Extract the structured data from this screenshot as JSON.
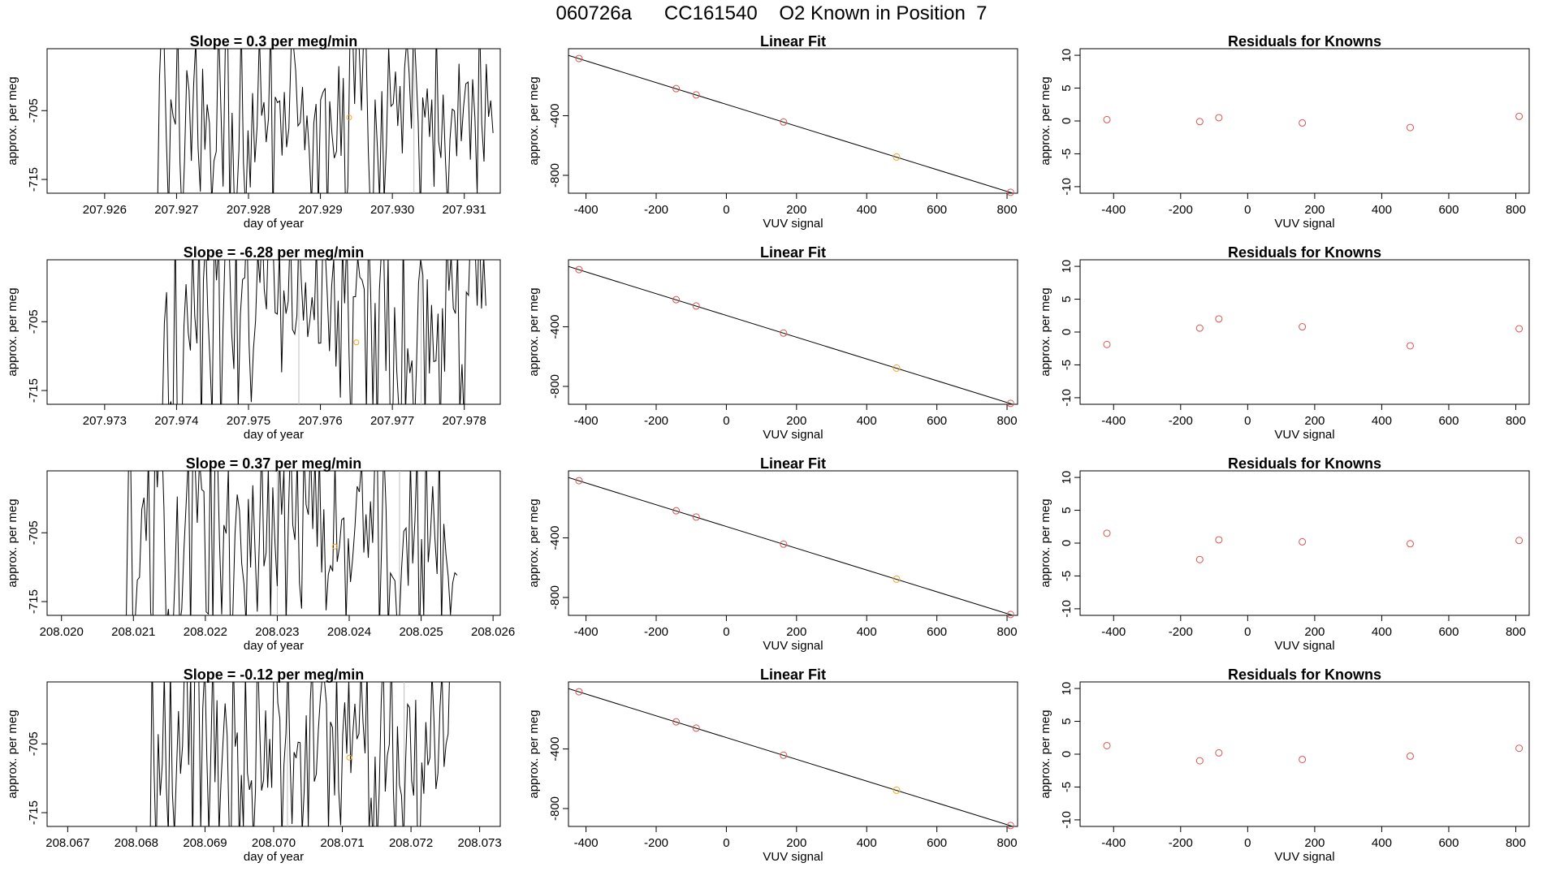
{
  "main_title": "060726a      CC161540    O2 Known in Position  7",
  "chart_data": [
    {
      "type": "line",
      "panel": "series",
      "row": 1,
      "title": "Slope =  0.3  per meg/min",
      "xlabel": "day of year",
      "ylabel": "approx. per meg",
      "xlim": [
        207.9252,
        207.9315
      ],
      "ylim": [
        -717,
        -696
      ],
      "xticks": [
        207.926,
        207.927,
        207.928,
        207.929,
        207.93,
        207.931
      ],
      "xtick_labels": [
        "207.926",
        "207.927",
        "207.928",
        "207.929",
        "207.930",
        "207.931"
      ],
      "yticks": [
        -705,
        -715
      ],
      "ytick_labels": [
        "-705",
        "-715"
      ],
      "vlines": [
        207.9303
      ],
      "highlight": {
        "x": 207.9294,
        "y": -706
      },
      "seed": 11,
      "x_start": 207.9267,
      "x_end": 207.9314
    },
    {
      "type": "scatter",
      "panel": "fit",
      "row": 1,
      "title": "Linear Fit",
      "xlabel": "VUV signal",
      "ylabel": "approx. per meg",
      "xlim": [
        -450,
        830
      ],
      "ylim": [
        -920,
        50
      ],
      "xticks": [
        -400,
        -200,
        0,
        200,
        400,
        600,
        800
      ],
      "yticks": [
        -400,
        -800
      ],
      "line": [
        [
          -450,
          5
        ],
        [
          830,
          -930
        ]
      ],
      "points": [
        {
          "x": -420,
          "y": -16,
          "c": "red"
        },
        {
          "x": -143,
          "y": -218,
          "c": "red"
        },
        {
          "x": -86,
          "y": -260,
          "c": "red"
        },
        {
          "x": 163,
          "y": -442,
          "c": "red"
        },
        {
          "x": 485,
          "y": -677,
          "c": "orange"
        },
        {
          "x": 810,
          "y": -914,
          "c": "red"
        }
      ]
    },
    {
      "type": "scatter",
      "panel": "resid",
      "row": 1,
      "title": "Residuals for Knowns",
      "xlabel": "VUV signal",
      "ylabel": "approx. per meg",
      "xlim": [
        -500,
        840
      ],
      "ylim": [
        -11,
        11
      ],
      "xticks": [
        -400,
        -200,
        0,
        200,
        400,
        600,
        800
      ],
      "yticks": [
        10,
        5,
        0,
        -5,
        -10
      ],
      "points": [
        {
          "x": -420,
          "y": 0.2
        },
        {
          "x": -143,
          "y": -0.1
        },
        {
          "x": -86,
          "y": 0.5
        },
        {
          "x": 163,
          "y": -0.3
        },
        {
          "x": 485,
          "y": -1.0
        },
        {
          "x": 810,
          "y": 0.7
        }
      ]
    },
    {
      "type": "line",
      "panel": "series",
      "row": 2,
      "title": "Slope =  -6.28  per meg/min",
      "xlabel": "day of year",
      "ylabel": "approx. per meg",
      "xlim": [
        207.9722,
        207.9785
      ],
      "ylim": [
        -717,
        -696
      ],
      "xticks": [
        207.973,
        207.974,
        207.975,
        207.976,
        207.977,
        207.978
      ],
      "xtick_labels": [
        "207.973",
        "207.974",
        "207.975",
        "207.976",
        "207.977",
        "207.978"
      ],
      "yticks": [
        -705,
        -715
      ],
      "ytick_labels": [
        "-705",
        "-715"
      ],
      "vlines": [
        207.9757,
        207.9774
      ],
      "highlight": {
        "x": 207.9765,
        "y": -708
      },
      "seed": 23,
      "x_start": 207.9738,
      "x_end": 207.9783
    },
    {
      "type": "scatter",
      "panel": "fit",
      "row": 2,
      "title": "Linear Fit",
      "xlabel": "VUV signal",
      "ylabel": "approx. per meg",
      "xlim": [
        -450,
        830
      ],
      "ylim": [
        -920,
        50
      ],
      "xticks": [
        -400,
        -200,
        0,
        200,
        400,
        600,
        800
      ],
      "yticks": [
        -400,
        -800
      ],
      "line": [
        [
          -450,
          5
        ],
        [
          830,
          -930
        ]
      ],
      "points": [
        {
          "x": -420,
          "y": -16,
          "c": "red"
        },
        {
          "x": -143,
          "y": -218,
          "c": "red"
        },
        {
          "x": -86,
          "y": -260,
          "c": "red"
        },
        {
          "x": 163,
          "y": -442,
          "c": "red"
        },
        {
          "x": 485,
          "y": -677,
          "c": "orange"
        },
        {
          "x": 810,
          "y": -914,
          "c": "red"
        }
      ]
    },
    {
      "type": "scatter",
      "panel": "resid",
      "row": 2,
      "title": "Residuals for Knowns",
      "xlabel": "VUV signal",
      "ylabel": "approx. per meg",
      "xlim": [
        -500,
        840
      ],
      "ylim": [
        -11,
        11
      ],
      "xticks": [
        -400,
        -200,
        0,
        200,
        400,
        600,
        800
      ],
      "yticks": [
        10,
        5,
        0,
        -5,
        -10
      ],
      "points": [
        {
          "x": -420,
          "y": -1.9
        },
        {
          "x": -143,
          "y": 0.6
        },
        {
          "x": -86,
          "y": 2.0
        },
        {
          "x": 163,
          "y": 0.8
        },
        {
          "x": 485,
          "y": -2.1
        },
        {
          "x": 810,
          "y": 0.5
        }
      ]
    },
    {
      "type": "line",
      "panel": "series",
      "row": 3,
      "title": "Slope =  0.37  per meg/min",
      "xlabel": "day of year",
      "ylabel": "approx. per meg",
      "xlim": [
        208.0198,
        208.0261
      ],
      "ylim": [
        -717,
        -696
      ],
      "xticks": [
        208.02,
        208.021,
        208.022,
        208.023,
        208.024,
        208.025,
        208.026
      ],
      "xtick_labels": [
        "208.020",
        "208.021",
        "208.022",
        "208.023",
        "208.024",
        "208.025",
        "208.026"
      ],
      "yticks": [
        -705,
        -715
      ],
      "ytick_labels": [
        "-705",
        "-715"
      ],
      "vlines": [
        208.023,
        208.0247
      ],
      "highlight": {
        "x": 208.0238,
        "y": -707
      },
      "seed": 37,
      "x_start": 208.0209,
      "x_end": 208.0255
    },
    {
      "type": "scatter",
      "panel": "fit",
      "row": 3,
      "title": "Linear Fit",
      "xlabel": "VUV signal",
      "ylabel": "approx. per meg",
      "xlim": [
        -450,
        830
      ],
      "ylim": [
        -920,
        50
      ],
      "xticks": [
        -400,
        -200,
        0,
        200,
        400,
        600,
        800
      ],
      "yticks": [
        -400,
        -800
      ],
      "line": [
        [
          -450,
          5
        ],
        [
          830,
          -930
        ]
      ],
      "points": [
        {
          "x": -420,
          "y": -16,
          "c": "red"
        },
        {
          "x": -143,
          "y": -218,
          "c": "red"
        },
        {
          "x": -86,
          "y": -260,
          "c": "red"
        },
        {
          "x": 163,
          "y": -442,
          "c": "red"
        },
        {
          "x": 485,
          "y": -677,
          "c": "orange"
        },
        {
          "x": 810,
          "y": -914,
          "c": "red"
        }
      ]
    },
    {
      "type": "scatter",
      "panel": "resid",
      "row": 3,
      "title": "Residuals for Knowns",
      "xlabel": "VUV signal",
      "ylabel": "approx. per meg",
      "xlim": [
        -500,
        840
      ],
      "ylim": [
        -11,
        11
      ],
      "xticks": [
        -400,
        -200,
        0,
        200,
        400,
        600,
        800
      ],
      "yticks": [
        10,
        5,
        0,
        -5,
        -10
      ],
      "points": [
        {
          "x": -420,
          "y": 1.5
        },
        {
          "x": -143,
          "y": -2.5
        },
        {
          "x": -86,
          "y": 0.5
        },
        {
          "x": 163,
          "y": 0.2
        },
        {
          "x": 485,
          "y": -0.1
        },
        {
          "x": 810,
          "y": 0.4
        }
      ]
    },
    {
      "type": "line",
      "panel": "series",
      "row": 4,
      "title": "Slope =  -0.12  per meg/min",
      "xlabel": "day of year",
      "ylabel": "approx. per meg",
      "xlim": [
        208.0667,
        208.0733
      ],
      "ylim": [
        -717,
        -696
      ],
      "xticks": [
        208.067,
        208.068,
        208.069,
        208.07,
        208.071,
        208.072,
        208.073
      ],
      "xtick_labels": [
        "208.067",
        "208.068",
        "208.069",
        "208.070",
        "208.071",
        "208.072",
        "208.073"
      ],
      "yticks": [
        -705,
        -715
      ],
      "ytick_labels": [
        "-705",
        "-715"
      ],
      "vlines": [
        208.0702,
        208.0719
      ],
      "highlight": {
        "x": 208.0711,
        "y": -707
      },
      "seed": 53,
      "x_start": 208.0682,
      "x_end": 208.0726
    },
    {
      "type": "scatter",
      "panel": "fit",
      "row": 4,
      "title": "Linear Fit",
      "xlabel": "VUV signal",
      "ylabel": "approx. per meg",
      "xlim": [
        -450,
        830
      ],
      "ylim": [
        -920,
        50
      ],
      "xticks": [
        -400,
        -200,
        0,
        200,
        400,
        600,
        800
      ],
      "yticks": [
        -400,
        -800
      ],
      "line": [
        [
          -450,
          5
        ],
        [
          830,
          -930
        ]
      ],
      "points": [
        {
          "x": -420,
          "y": -16,
          "c": "red"
        },
        {
          "x": -143,
          "y": -218,
          "c": "red"
        },
        {
          "x": -86,
          "y": -260,
          "c": "red"
        },
        {
          "x": 163,
          "y": -442,
          "c": "red"
        },
        {
          "x": 485,
          "y": -677,
          "c": "orange"
        },
        {
          "x": 810,
          "y": -914,
          "c": "red"
        }
      ]
    },
    {
      "type": "scatter",
      "panel": "resid",
      "row": 4,
      "title": "Residuals for Knowns",
      "xlabel": "VUV signal",
      "ylabel": "approx. per meg",
      "xlim": [
        -500,
        840
      ],
      "ylim": [
        -11,
        11
      ],
      "xticks": [
        -400,
        -200,
        0,
        200,
        400,
        600,
        800
      ],
      "yticks": [
        10,
        5,
        0,
        -5,
        -10
      ],
      "points": [
        {
          "x": -420,
          "y": 1.3
        },
        {
          "x": -143,
          "y": -1.0
        },
        {
          "x": -86,
          "y": 0.2
        },
        {
          "x": 163,
          "y": -0.8
        },
        {
          "x": 485,
          "y": -0.3
        },
        {
          "x": 810,
          "y": 0.9
        }
      ]
    }
  ]
}
